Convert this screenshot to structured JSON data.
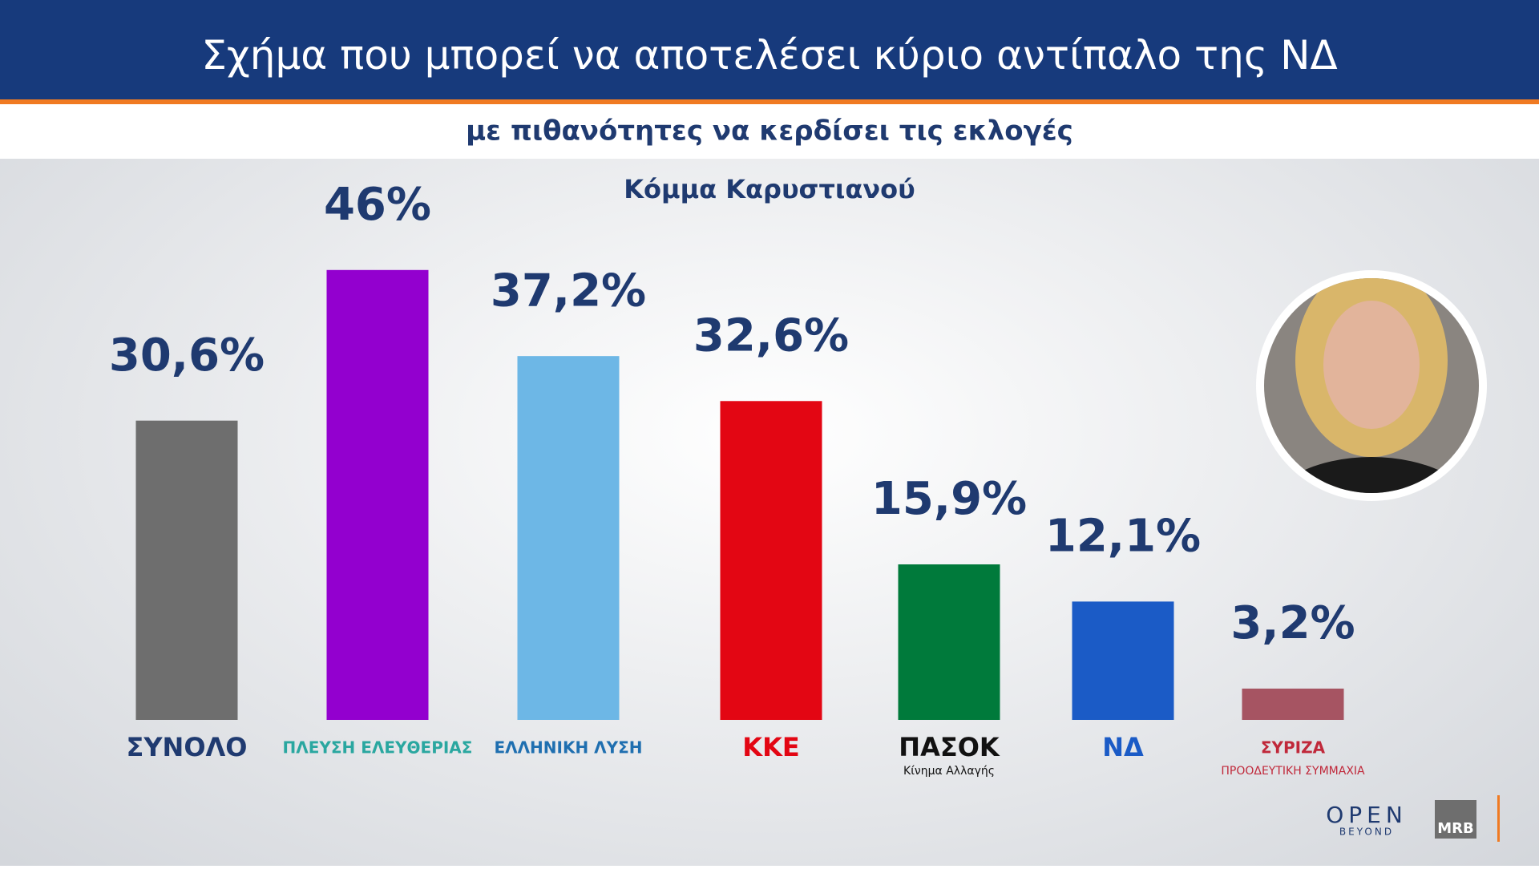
{
  "chart_data": {
    "type": "bar",
    "title": "Σχήμα που μπορεί να αποτελέσει κύριο αντίπαλο της ΝΔ",
    "subtitle": "με πιθανότητες να κερδίσει τις εκλογές",
    "annotation": "Κόμμα Καρυστιανού",
    "categories": [
      "ΣΥΝΟΛΟ",
      "ΠΛΕΥΣΗ ΕΛΕΥΘΕΡΙΑΣ",
      "ΕΛΛΗΝΙΚΗ ΛΥΣΗ",
      "ΚΚΕ",
      "ΠΑΣΟΚ",
      "ΝΔ",
      "ΣΥΡΙΖΑ"
    ],
    "category_sublabels": [
      null,
      null,
      null,
      null,
      "Κίνημα Αλλαγής",
      null,
      "ΠΡΟΟΔΕΥΤΙΚΗ ΣΥΜΜΑΧΙΑ"
    ],
    "values": [
      30.6,
      46,
      37.2,
      32.6,
      15.9,
      12.1,
      3.2
    ],
    "value_labels": [
      "30,6%",
      "46%",
      "37,2%",
      "32,6%",
      "15,9%",
      "12,1%",
      "3,2%"
    ],
    "colors": [
      "#6e6e6e",
      "#9300cf",
      "#6db7e6",
      "#e30613",
      "#007a3b",
      "#1b5bc6",
      "#a65462"
    ],
    "label_colors": [
      "#1f3a70",
      "#2aa7a0",
      "#1f6fb0",
      "#e30613",
      "#111111",
      "#1b5bc6",
      "#c0283a"
    ]
  },
  "branding": {
    "channel": "OPEN",
    "channel_tagline": "BEYOND",
    "pollster": "MRB"
  }
}
